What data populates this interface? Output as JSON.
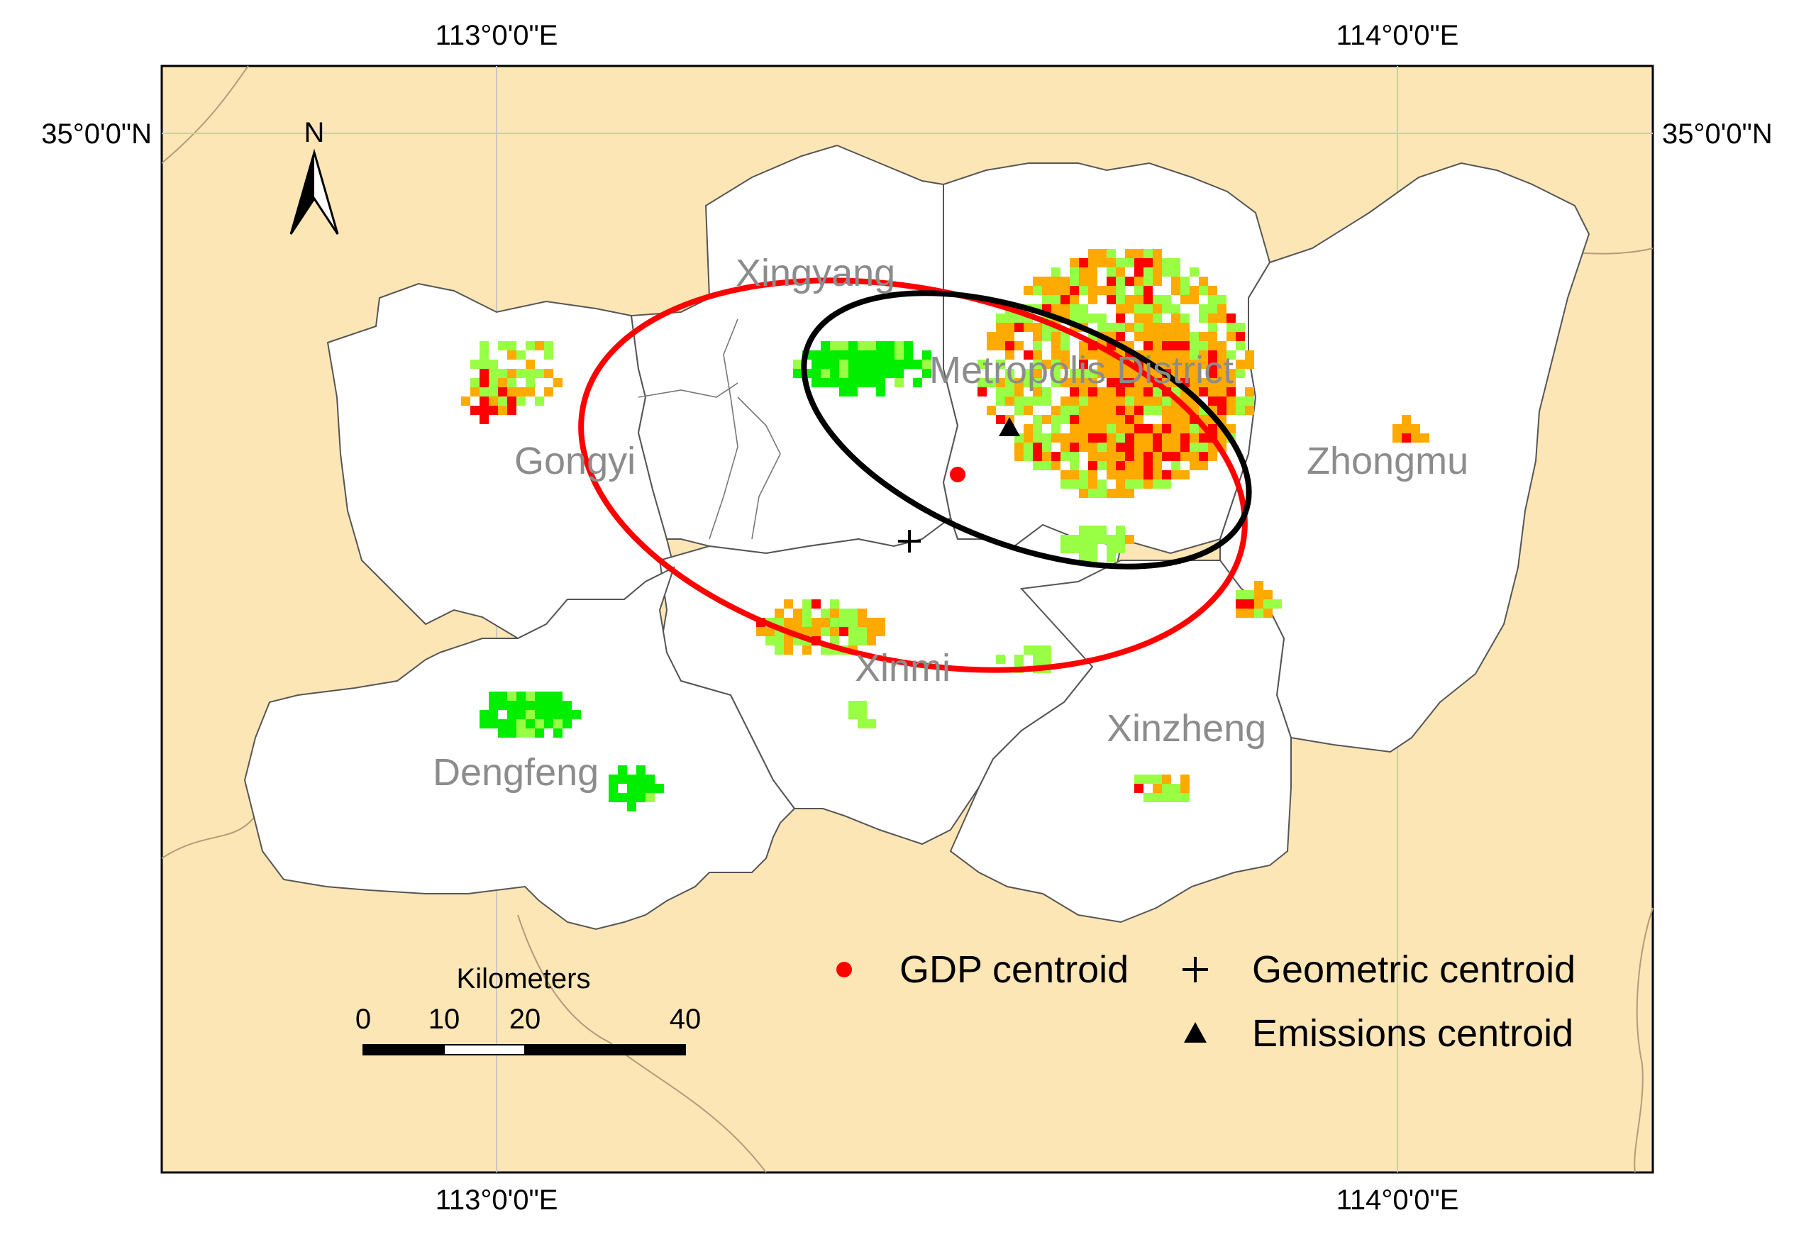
{
  "colors": {
    "background": "#fde6b6",
    "region_fill": "#ffffff",
    "ellipse_gdp": "#ff0000",
    "ellipse_emissions": "#000000",
    "high": "#ff0000",
    "medium": "#ffaa00",
    "low": "#99ff44",
    "green": "#00ee00"
  },
  "graticule": {
    "lon_labels": [
      "113°0'0\"E",
      "114°0'0\"E"
    ],
    "lat_labels": [
      "35°0'0\"N"
    ]
  },
  "north_arrow": {
    "label": "N"
  },
  "regions": [
    {
      "name": "Xingyang"
    },
    {
      "name": "Metropolis District"
    },
    {
      "name": "Gongyi"
    },
    {
      "name": "Zhongmu"
    },
    {
      "name": "Xinmi"
    },
    {
      "name": "Xinzheng"
    },
    {
      "name": "Dengfeng"
    }
  ],
  "scale_bar": {
    "title": "Kilometers",
    "ticks": [
      "0",
      "10",
      "20",
      "40"
    ]
  },
  "legend": {
    "items": [
      {
        "label": "GDP centroid",
        "symbol": "red-dot"
      },
      {
        "label": "Geometric centroid",
        "symbol": "cross"
      },
      {
        "label": "Emissions centroid",
        "symbol": "triangle"
      }
    ]
  }
}
